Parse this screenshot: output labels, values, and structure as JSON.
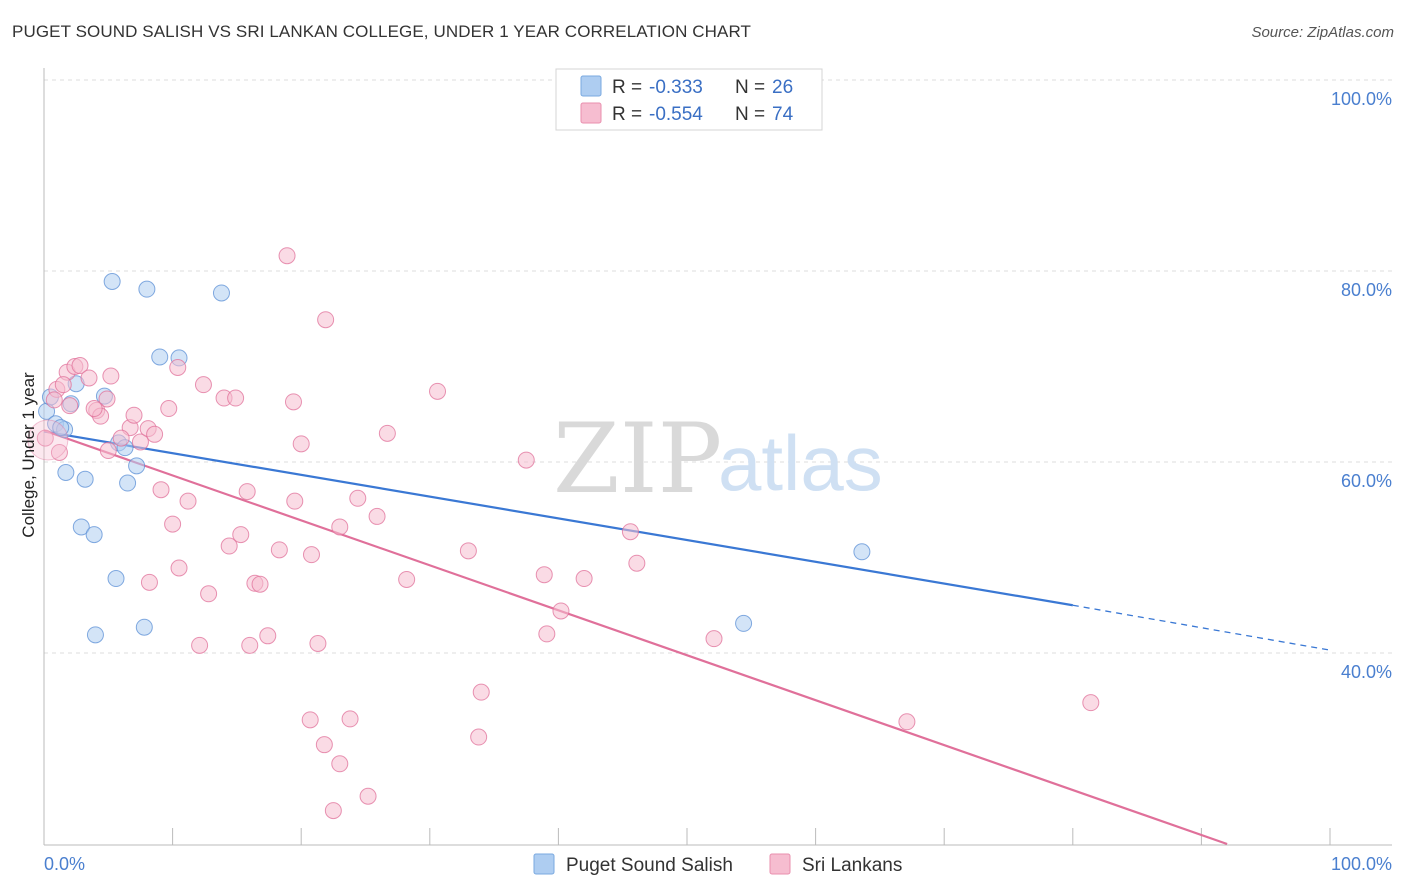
{
  "title": "PUGET SOUND SALISH VS SRI LANKAN COLLEGE, UNDER 1 YEAR CORRELATION CHART",
  "source": "Source: ZipAtlas.com",
  "watermark": {
    "zip": "ZIP",
    "atlas": "atlas"
  },
  "legend": {
    "rows": [
      {
        "r_label": "R =",
        "r_value": "-0.333",
        "n_label": "N =",
        "n_value": "26",
        "color": "#9dc3ee"
      },
      {
        "r_label": "R =",
        "r_value": "-0.554",
        "n_label": "N =",
        "n_value": "74",
        "color": "#f4aec4"
      }
    ]
  },
  "bottom_legend": [
    {
      "label": "Puget Sound Salish",
      "color": "#9dc3ee"
    },
    {
      "label": "Sri Lankans",
      "color": "#f4aec4"
    }
  ],
  "chart_data": {
    "type": "scatter",
    "title": "PUGET SOUND SALISH VS SRI LANKAN COLLEGE, UNDER 1 YEAR CORRELATION CHART",
    "xlabel": "",
    "ylabel": "College, Under 1 year",
    "xlim": [
      0,
      100
    ],
    "ylim": [
      20,
      102
    ],
    "x_ticks_labels": [
      "0.0%",
      "100.0%"
    ],
    "y_ticks": [
      40,
      60,
      80,
      100
    ],
    "y_ticks_labels": [
      "40.0%",
      "60.0%",
      "80.0%",
      "100.0%"
    ],
    "grid": true,
    "legend_position": "top-center",
    "series": [
      {
        "name": "Puget Sound Salish",
        "color": "#5b8fd6",
        "fill": "#aecdf1",
        "trend": {
          "x0": 0,
          "y0": 63.2,
          "x1": 80,
          "y1": 45.0,
          "dash_x1": 100,
          "dash_y1": 40.3
        },
        "points": [
          [
            0.2,
            65.3
          ],
          [
            0.9,
            64.0
          ],
          [
            1.6,
            63.4
          ],
          [
            2.1,
            66.1
          ],
          [
            2.5,
            68.2
          ],
          [
            0.5,
            66.8
          ],
          [
            3.2,
            58.2
          ],
          [
            1.7,
            58.9
          ],
          [
            2.9,
            53.2
          ],
          [
            4.7,
            66.9
          ],
          [
            5.3,
            78.9
          ],
          [
            8.0,
            78.1
          ],
          [
            13.8,
            77.7
          ],
          [
            9.0,
            71.0
          ],
          [
            10.5,
            70.9
          ],
          [
            5.8,
            62.0
          ],
          [
            6.3,
            61.5
          ],
          [
            7.2,
            59.6
          ],
          [
            6.5,
            57.8
          ],
          [
            3.9,
            52.4
          ],
          [
            5.6,
            47.8
          ],
          [
            4.0,
            41.9
          ],
          [
            7.8,
            42.7
          ],
          [
            63.6,
            50.6
          ],
          [
            54.4,
            43.1
          ],
          [
            1.3,
            63.6
          ]
        ]
      },
      {
        "name": "Sri Lankans",
        "color": "#e0709a",
        "fill": "#f6bdd0",
        "trend": {
          "x0": 0,
          "y0": 63.3,
          "x1": 92,
          "y1": 20.0
        },
        "points": [
          [
            0.1,
            62.5
          ],
          [
            1.0,
            67.6
          ],
          [
            1.8,
            69.4
          ],
          [
            2.4,
            70.0
          ],
          [
            2.8,
            70.1
          ],
          [
            3.5,
            68.8
          ],
          [
            4.9,
            66.6
          ],
          [
            5.2,
            69.0
          ],
          [
            4.1,
            65.4
          ],
          [
            4.4,
            64.8
          ],
          [
            1.5,
            68.1
          ],
          [
            6.7,
            63.6
          ],
          [
            6.0,
            62.5
          ],
          [
            7.5,
            62.1
          ],
          [
            8.1,
            63.5
          ],
          [
            8.6,
            62.9
          ],
          [
            9.7,
            65.6
          ],
          [
            10.4,
            69.9
          ],
          [
            12.4,
            68.1
          ],
          [
            14.0,
            66.7
          ],
          [
            14.9,
            66.7
          ],
          [
            18.9,
            81.6
          ],
          [
            21.9,
            74.9
          ],
          [
            19.4,
            66.3
          ],
          [
            20.0,
            61.9
          ],
          [
            9.1,
            57.1
          ],
          [
            11.2,
            55.9
          ],
          [
            10.0,
            53.5
          ],
          [
            15.8,
            56.9
          ],
          [
            19.5,
            55.9
          ],
          [
            23.0,
            53.2
          ],
          [
            24.4,
            56.2
          ],
          [
            25.9,
            54.3
          ],
          [
            26.7,
            63.0
          ],
          [
            30.6,
            67.4
          ],
          [
            37.5,
            60.2
          ],
          [
            14.4,
            51.2
          ],
          [
            15.3,
            52.4
          ],
          [
            18.3,
            50.8
          ],
          [
            20.8,
            50.3
          ],
          [
            10.5,
            48.9
          ],
          [
            8.2,
            47.4
          ],
          [
            12.8,
            46.2
          ],
          [
            16.4,
            47.3
          ],
          [
            16.8,
            47.2
          ],
          [
            28.2,
            47.7
          ],
          [
            33.0,
            50.7
          ],
          [
            38.9,
            48.2
          ],
          [
            42.0,
            47.8
          ],
          [
            45.6,
            52.7
          ],
          [
            46.1,
            49.4
          ],
          [
            12.1,
            40.8
          ],
          [
            16.0,
            40.8
          ],
          [
            17.4,
            41.8
          ],
          [
            21.3,
            41.0
          ],
          [
            39.1,
            42.0
          ],
          [
            40.2,
            44.4
          ],
          [
            52.1,
            41.5
          ],
          [
            34.0,
            35.9
          ],
          [
            33.8,
            31.2
          ],
          [
            20.7,
            33.0
          ],
          [
            21.8,
            30.4
          ],
          [
            23.8,
            33.1
          ],
          [
            23.0,
            28.4
          ],
          [
            22.5,
            23.5
          ],
          [
            25.2,
            25.0
          ],
          [
            67.1,
            32.8
          ],
          [
            81.4,
            34.8
          ],
          [
            5.0,
            61.2
          ],
          [
            3.9,
            65.6
          ],
          [
            0.8,
            66.5
          ],
          [
            2.0,
            65.9
          ],
          [
            7.0,
            64.9
          ],
          [
            1.2,
            61.0
          ]
        ]
      }
    ]
  }
}
